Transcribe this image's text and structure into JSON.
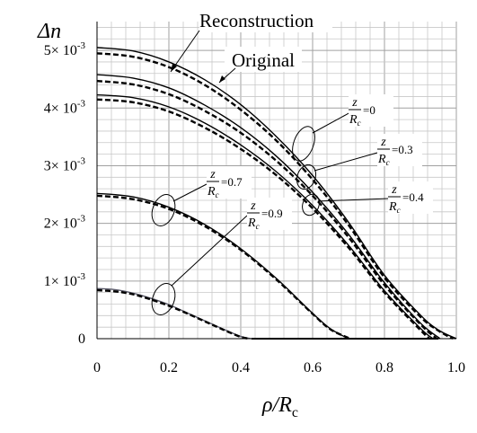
{
  "chart_data": {
    "type": "line",
    "ylabel": "Δn",
    "xlabel": "ρ/R",
    "xlabel_sub": "c",
    "xlim": [
      0,
      1.0
    ],
    "ylim": [
      0,
      0.0055
    ],
    "x_ticks": [
      {
        "value": 0,
        "label": "0"
      },
      {
        "value": 0.2,
        "label": "0.2"
      },
      {
        "value": 0.4,
        "label": "0.4"
      },
      {
        "value": 0.6,
        "label": "0.6"
      },
      {
        "value": 0.8,
        "label": "0.8"
      },
      {
        "value": 1.0,
        "label": "1.0"
      }
    ],
    "y_ticks": [
      {
        "value": 0,
        "mant": "0",
        "exp": ""
      },
      {
        "value": 0.001,
        "mant": "1× 10",
        "exp": "-3"
      },
      {
        "value": 0.002,
        "mant": "2× 10",
        "exp": "-3"
      },
      {
        "value": 0.003,
        "mant": "3× 10",
        "exp": "-3"
      },
      {
        "value": 0.004,
        "mant": "4× 10",
        "exp": "-3"
      },
      {
        "value": 0.005,
        "mant": "5× 10",
        "exp": "-3"
      }
    ],
    "grid": true,
    "legend": [
      {
        "label": "Reconstruction",
        "style": "solid"
      },
      {
        "label": "Original",
        "style": "dashed"
      }
    ],
    "series": [
      {
        "z": "0",
        "style": "solid",
        "x": [
          0,
          0.1,
          0.2,
          0.3,
          0.4,
          0.5,
          0.6,
          0.7,
          0.8,
          0.9,
          0.95,
          1.0
        ],
        "values": [
          0.00505,
          0.00499,
          0.0048,
          0.00449,
          0.00406,
          0.0035,
          0.00283,
          0.00202,
          0.0011,
          0.00041,
          0.00015,
          0
        ]
      },
      {
        "z": "0",
        "style": "dashed",
        "x": [
          0,
          0.1,
          0.2,
          0.3,
          0.4,
          0.5,
          0.6,
          0.7,
          0.8,
          0.9,
          0.95,
          0.99
        ],
        "values": [
          0.00495,
          0.00489,
          0.00471,
          0.0044,
          0.00397,
          0.00343,
          0.00276,
          0.00197,
          0.00106,
          0.00038,
          0.00014,
          0
        ]
      },
      {
        "z": "0.3",
        "style": "solid",
        "x": [
          0,
          0.1,
          0.2,
          0.3,
          0.4,
          0.5,
          0.6,
          0.7,
          0.8,
          0.9,
          0.955
        ],
        "values": [
          0.00458,
          0.00452,
          0.00435,
          0.00405,
          0.00366,
          0.00316,
          0.00254,
          0.00181,
          0.00097,
          0.00027,
          0
        ]
      },
      {
        "z": "0.3",
        "style": "dashed",
        "x": [
          0,
          0.1,
          0.2,
          0.3,
          0.4,
          0.5,
          0.6,
          0.7,
          0.8,
          0.9,
          0.945
        ],
        "values": [
          0.00447,
          0.00441,
          0.00424,
          0.00395,
          0.00357,
          0.00308,
          0.00248,
          0.00176,
          0.00093,
          0.00025,
          0
        ]
      },
      {
        "z": "0.4",
        "style": "solid",
        "x": [
          0,
          0.1,
          0.2,
          0.3,
          0.4,
          0.5,
          0.6,
          0.7,
          0.8,
          0.9,
          0.935
        ],
        "values": [
          0.00423,
          0.00418,
          0.00402,
          0.00374,
          0.00336,
          0.00289,
          0.00231,
          0.00162,
          0.00083,
          0.00018,
          0
        ]
      },
      {
        "z": "0.4",
        "style": "dashed",
        "x": [
          0,
          0.1,
          0.2,
          0.3,
          0.4,
          0.5,
          0.6,
          0.7,
          0.8,
          0.9,
          0.925
        ],
        "values": [
          0.00415,
          0.0041,
          0.00394,
          0.00366,
          0.00329,
          0.00283,
          0.00226,
          0.00158,
          0.0008,
          0.00015,
          0
        ]
      },
      {
        "z": "0.7",
        "style": "solid",
        "x": [
          0,
          0.1,
          0.2,
          0.3,
          0.4,
          0.5,
          0.6,
          0.65,
          0.7
        ],
        "values": [
          0.00252,
          0.00246,
          0.00228,
          0.00198,
          0.00156,
          0.00104,
          0.00044,
          0.00017,
          0
        ]
      },
      {
        "z": "0.7",
        "style": "dashed",
        "x": [
          0,
          0.1,
          0.2,
          0.3,
          0.4,
          0.5,
          0.6,
          0.65,
          0.705
        ],
        "values": [
          0.00248,
          0.00242,
          0.00225,
          0.00195,
          0.00154,
          0.00102,
          0.00043,
          0.00016,
          0
        ]
      },
      {
        "z": "0.9",
        "style": "solid",
        "x": [
          0,
          0.05,
          0.1,
          0.15,
          0.2,
          0.25,
          0.3,
          0.35,
          0.4,
          0.43
        ],
        "values": [
          0.00087,
          0.00085,
          0.00079,
          0.0007,
          0.00059,
          0.00045,
          0.00031,
          0.00017,
          4e-05,
          0
        ]
      },
      {
        "z": "0.9",
        "style": "dashed",
        "x": [
          0,
          0.05,
          0.1,
          0.15,
          0.2,
          0.25,
          0.3,
          0.35,
          0.4,
          0.425
        ],
        "values": [
          0.00084,
          0.00082,
          0.00077,
          0.00068,
          0.00057,
          0.00044,
          0.0003,
          0.00016,
          3e-05,
          0
        ]
      }
    ],
    "annotations": [
      {
        "num": "z",
        "den": "R",
        "den_sub": "c",
        "eq": "=0"
      },
      {
        "num": "z",
        "den": "R",
        "den_sub": "c",
        "eq": "=0.3"
      },
      {
        "num": "z",
        "den": "R",
        "den_sub": "c",
        "eq": "=0.4"
      },
      {
        "num": "z",
        "den": "R",
        "den_sub": "c",
        "eq": "=0.7"
      },
      {
        "num": "z",
        "den": "R",
        "den_sub": "c",
        "eq": "=0.9"
      }
    ]
  }
}
